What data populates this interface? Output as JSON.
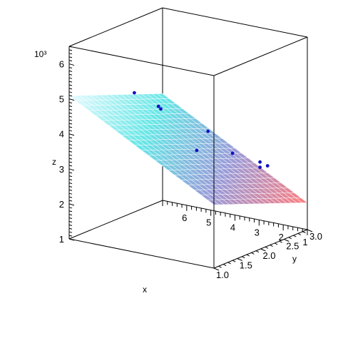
{
  "chart_data": {
    "type": "scatter",
    "subtype": "3d-surface-with-points",
    "title": "",
    "z_multiplier": "10³",
    "axes": {
      "x": {
        "label": "x",
        "range": [
          1,
          7
        ],
        "ticks": [
          "1",
          "2",
          "3",
          "4",
          "5",
          "6"
        ]
      },
      "y": {
        "label": "y",
        "range": [
          1.0,
          3.0
        ],
        "ticks": [
          "1.0",
          "1.5",
          "2.0",
          "2.5",
          "3.0"
        ]
      },
      "z": {
        "label": "z",
        "range": [
          1,
          6.5
        ],
        "ticks": [
          "1",
          "2",
          "3",
          "4",
          "5",
          "6"
        ]
      }
    },
    "surface": {
      "description": "fitted plane",
      "colormap": [
        "#e8fbff",
        "#66e6e6",
        "#9a9ad8",
        "#ff7f7f"
      ],
      "mesh_color": "#ffffff"
    },
    "points": [
      {
        "x": 4.3,
        "y": 1.0,
        "z": 5.55,
        "label": ""
      },
      {
        "x": 3.3,
        "y": 1.0,
        "z": 5.3,
        "label": ""
      },
      {
        "x": 3.3,
        "y": 1.05,
        "z": 5.2,
        "label": ""
      },
      {
        "x": 2.6,
        "y": 1.7,
        "z": 4.3,
        "label": ""
      },
      {
        "x": 2.1,
        "y": 1.2,
        "z": 4.1,
        "label": ""
      },
      {
        "x": 1.8,
        "y": 2.4,
        "z": 3.15,
        "label": ""
      },
      {
        "x": 1.8,
        "y": 2.4,
        "z": 3.0,
        "label": ""
      },
      {
        "x": 1.1,
        "y": 2.2,
        "z": 3.25,
        "label": ""
      },
      {
        "x": 4.1,
        "y": 3.0,
        "z": 2.75,
        "label": ""
      }
    ],
    "point_color": "#1010c0",
    "grid": false,
    "legend": "none"
  }
}
